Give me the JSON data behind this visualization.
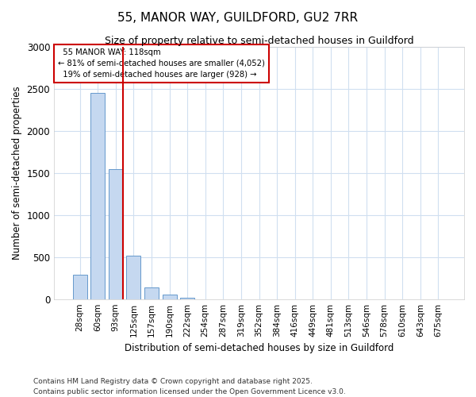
{
  "title_line1": "55, MANOR WAY, GUILDFORD, GU2 7RR",
  "title_line2": "Size of property relative to semi-detached houses in Guildford",
  "xlabel": "Distribution of semi-detached houses by size in Guildford",
  "ylabel": "Number of semi-detached properties",
  "categories": [
    "28sqm",
    "60sqm",
    "93sqm",
    "125sqm",
    "157sqm",
    "190sqm",
    "222sqm",
    "254sqm",
    "287sqm",
    "319sqm",
    "352sqm",
    "384sqm",
    "416sqm",
    "449sqm",
    "481sqm",
    "513sqm",
    "546sqm",
    "578sqm",
    "610sqm",
    "643sqm",
    "675sqm"
  ],
  "values": [
    290,
    2450,
    1550,
    520,
    140,
    55,
    20,
    0,
    0,
    0,
    0,
    0,
    0,
    0,
    0,
    0,
    0,
    0,
    0,
    0,
    0
  ],
  "bar_color": "#c5d8f0",
  "bar_edge_color": "#6699cc",
  "vline_after_index": 2,
  "vline_color": "#cc0000",
  "property_label": "55 MANOR WAY: 118sqm",
  "pct_smaller": 81,
  "pct_smaller_count": "4,052",
  "pct_larger": 19,
  "pct_larger_count": "928",
  "annotation_box_edge_color": "#cc0000",
  "footer_line1": "Contains HM Land Registry data © Crown copyright and database right 2025.",
  "footer_line2": "Contains public sector information licensed under the Open Government Licence v3.0.",
  "ylim": [
    0,
    3000
  ],
  "yticks": [
    0,
    500,
    1000,
    1500,
    2000,
    2500,
    3000
  ],
  "background_color": "#ffffff",
  "plot_background": "#ffffff",
  "grid_color": "#d0dff0"
}
